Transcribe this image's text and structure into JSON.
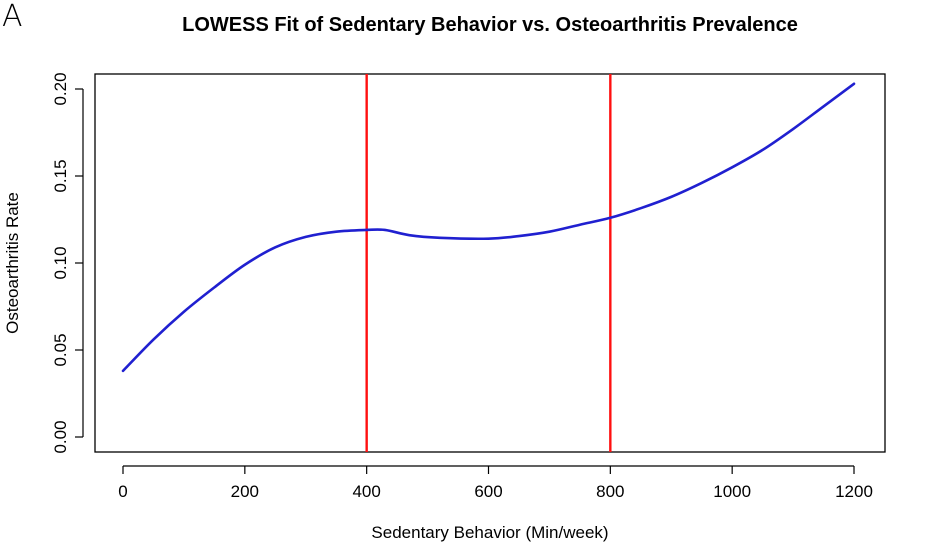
{
  "panel_label": "A",
  "chart_data": {
    "type": "line",
    "title": "LOWESS Fit of Sedentary Behavior vs. Osteoarthritis Prevalence",
    "xlabel": "Sedentary Behavior (Min/week)",
    "ylabel": "Osteoarthritis Rate",
    "xlim": [
      0,
      1200
    ],
    "ylim": [
      0,
      0.2
    ],
    "xticks": [
      "0",
      "200",
      "400",
      "600",
      "800",
      "1000",
      "1200"
    ],
    "yticks": [
      "0.00",
      "0.05",
      "0.10",
      "0.15",
      "0.20"
    ],
    "grid": false,
    "series": [
      {
        "color": "#2020d0",
        "x": [
          0,
          50,
          100,
          150,
          200,
          250,
          300,
          350,
          400,
          430,
          470,
          520,
          600,
          650,
          700,
          750,
          800,
          850,
          900,
          950,
          1000,
          1050,
          1100,
          1150,
          1200
        ],
        "y": [
          0.038,
          0.056,
          0.072,
          0.086,
          0.099,
          0.109,
          0.115,
          0.118,
          0.119,
          0.119,
          0.116,
          0.1145,
          0.114,
          0.1155,
          0.118,
          0.122,
          0.126,
          0.1315,
          0.138,
          0.146,
          0.155,
          0.165,
          0.177,
          0.19,
          0.203
        ]
      }
    ],
    "vlines": [
      {
        "x": 400,
        "color": "#ff1010"
      },
      {
        "x": 800,
        "color": "#ff1010"
      }
    ]
  }
}
